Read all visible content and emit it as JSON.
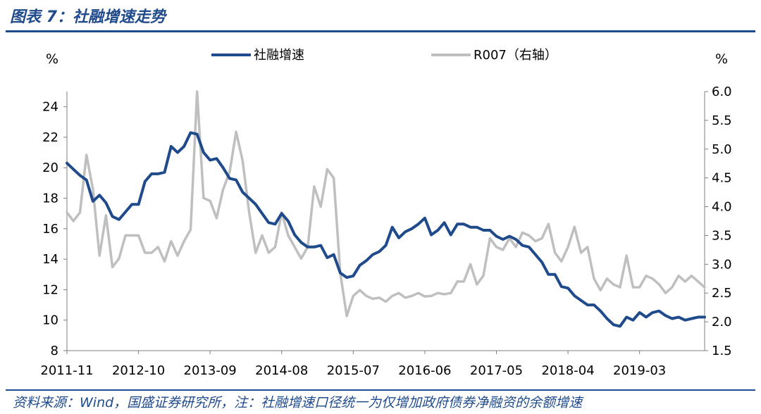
{
  "header": {
    "title": "图表 7：社融增速走势"
  },
  "footer": {
    "source": "资料来源：Wind，国盛证券研究所，注：社融增速口径统一为仅增加政府债券净融资的余额增速"
  },
  "chart_data": {
    "type": "line",
    "title": "图表 7：社融增速走势",
    "left_unit": "%",
    "right_unit": "%",
    "x_tick_labels": [
      "2011-11",
      "2012-10",
      "2013-09",
      "2014-08",
      "2015-07",
      "2016-06",
      "2017-05",
      "2018-04",
      "2019-03"
    ],
    "y_left": {
      "range": [
        8,
        25
      ],
      "ticks": [
        "8",
        "10",
        "12",
        "14",
        "16",
        "18",
        "20",
        "22",
        "24"
      ]
    },
    "y_right": {
      "range": [
        1.5,
        6.0
      ],
      "ticks": [
        "1.5",
        "2.0",
        "2.5",
        "3.0",
        "3.5",
        "4.0",
        "4.5",
        "5.0",
        "5.5",
        "6.0"
      ]
    },
    "legend": {
      "placement": "top-center"
    },
    "colors": {
      "series_1": "#1f4a8c",
      "series_2": "#bfbfbf"
    },
    "series": [
      {
        "name": "社融增速",
        "axis": "left",
        "start": "2011-11",
        "values": [
          20.3,
          19.9,
          19.5,
          19.2,
          17.8,
          18.2,
          17.7,
          16.8,
          16.6,
          17.1,
          17.6,
          17.6,
          19.1,
          19.6,
          19.6,
          19.7,
          21.4,
          21.0,
          21.4,
          22.3,
          22.2,
          21.0,
          20.5,
          20.6,
          20.0,
          19.3,
          19.2,
          18.4,
          18.0,
          17.6,
          17.0,
          16.4,
          16.3,
          17.0,
          16.5,
          15.6,
          15.1,
          14.8,
          14.8,
          14.9,
          14.1,
          14.3,
          13.1,
          12.8,
          12.9,
          13.6,
          13.9,
          14.3,
          14.5,
          14.9,
          16.1,
          15.4,
          15.8,
          16.0,
          16.3,
          16.7,
          15.6,
          15.9,
          16.4,
          15.6,
          16.3,
          16.3,
          16.1,
          16.1,
          15.9,
          15.9,
          15.5,
          15.3,
          15.5,
          15.3,
          14.9,
          14.8,
          14.3,
          13.8,
          13.0,
          13.0,
          12.2,
          12.1,
          11.6,
          11.3,
          11.0,
          11.0,
          10.6,
          10.1,
          9.7,
          9.6,
          10.2,
          10.0,
          10.5,
          10.2,
          10.5,
          10.6,
          10.3,
          10.1,
          10.2,
          10.0,
          10.1,
          10.2,
          10.2
        ]
      },
      {
        "name": "R007（右轴）",
        "axis": "right",
        "start": "2011-11",
        "values": [
          3.9,
          3.75,
          3.9,
          4.9,
          4.3,
          3.15,
          3.85,
          2.95,
          3.1,
          3.5,
          3.5,
          3.5,
          3.2,
          3.2,
          3.3,
          3.05,
          3.4,
          3.15,
          3.4,
          3.6,
          6.0,
          4.15,
          4.1,
          3.8,
          4.3,
          4.6,
          5.3,
          4.8,
          3.9,
          3.2,
          3.5,
          3.2,
          3.3,
          3.9,
          3.5,
          3.3,
          3.1,
          3.3,
          4.35,
          4.0,
          4.65,
          4.5,
          2.85,
          2.1,
          2.45,
          2.55,
          2.45,
          2.4,
          2.42,
          2.35,
          2.45,
          2.5,
          2.42,
          2.45,
          2.5,
          2.44,
          2.45,
          2.5,
          2.48,
          2.5,
          2.7,
          2.7,
          3.0,
          2.65,
          2.8,
          3.45,
          3.3,
          3.25,
          3.45,
          3.3,
          3.55,
          3.5,
          3.4,
          3.45,
          3.7,
          3.2,
          3.05,
          3.3,
          3.65,
          3.2,
          3.3,
          2.75,
          2.55,
          2.75,
          2.65,
          2.6,
          3.15,
          2.6,
          2.6,
          2.8,
          2.75,
          2.65,
          2.5,
          2.6,
          2.8,
          2.7,
          2.8,
          2.7,
          2.6
        ]
      }
    ]
  }
}
